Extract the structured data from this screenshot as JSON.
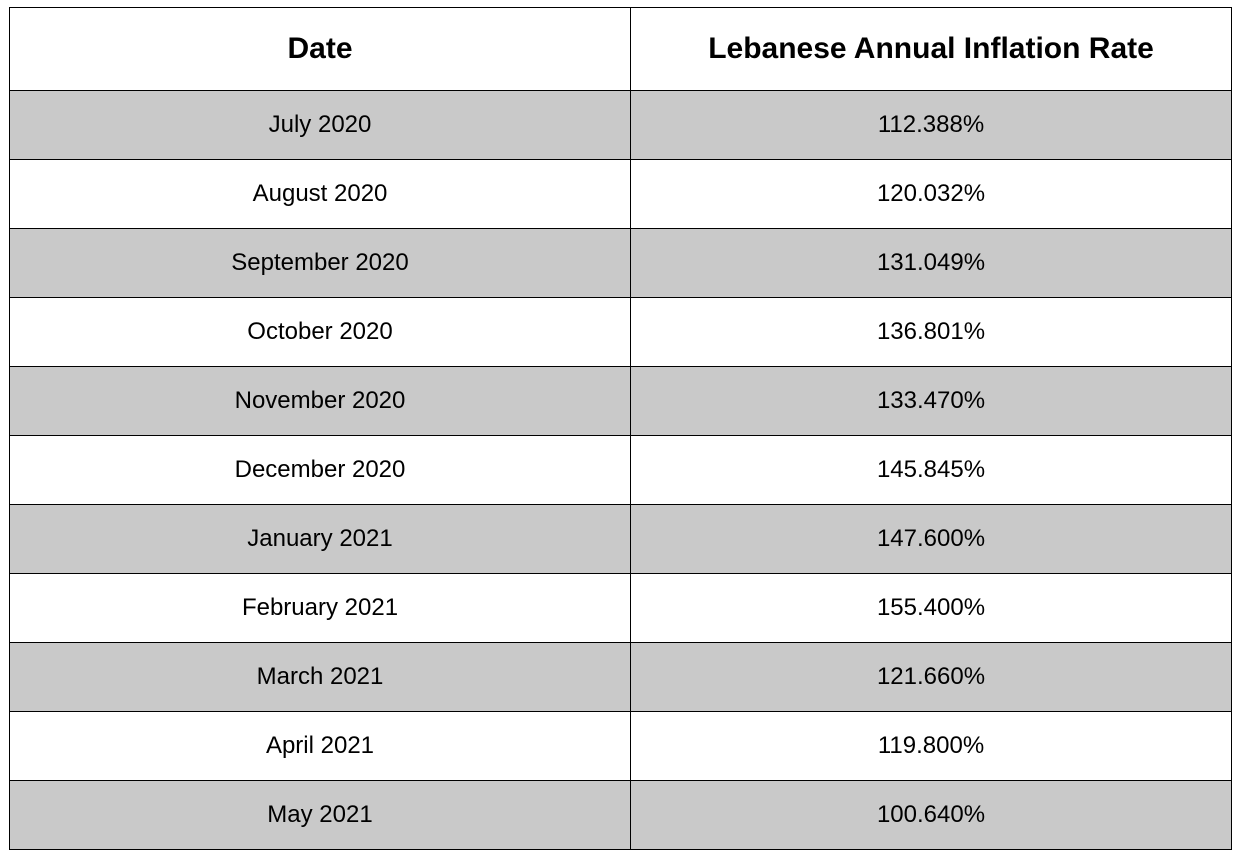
{
  "table": {
    "header": [
      "Date",
      "Lebanese Annual Inflation Rate"
    ],
    "rows": [
      [
        "July 2020",
        "112.388%"
      ],
      [
        "August 2020",
        "120.032%"
      ],
      [
        "September 2020",
        "131.049%"
      ],
      [
        "October 2020",
        "136.801%"
      ],
      [
        "November 2020",
        "133.470%"
      ],
      [
        "December 2020",
        "145.845%"
      ],
      [
        "January 2021",
        "147.600%"
      ],
      [
        "February 2021",
        "155.400%"
      ],
      [
        "March 2021",
        "121.660%"
      ],
      [
        "April 2021",
        "119.800%"
      ],
      [
        "May 2021",
        "100.640%"
      ]
    ]
  }
}
